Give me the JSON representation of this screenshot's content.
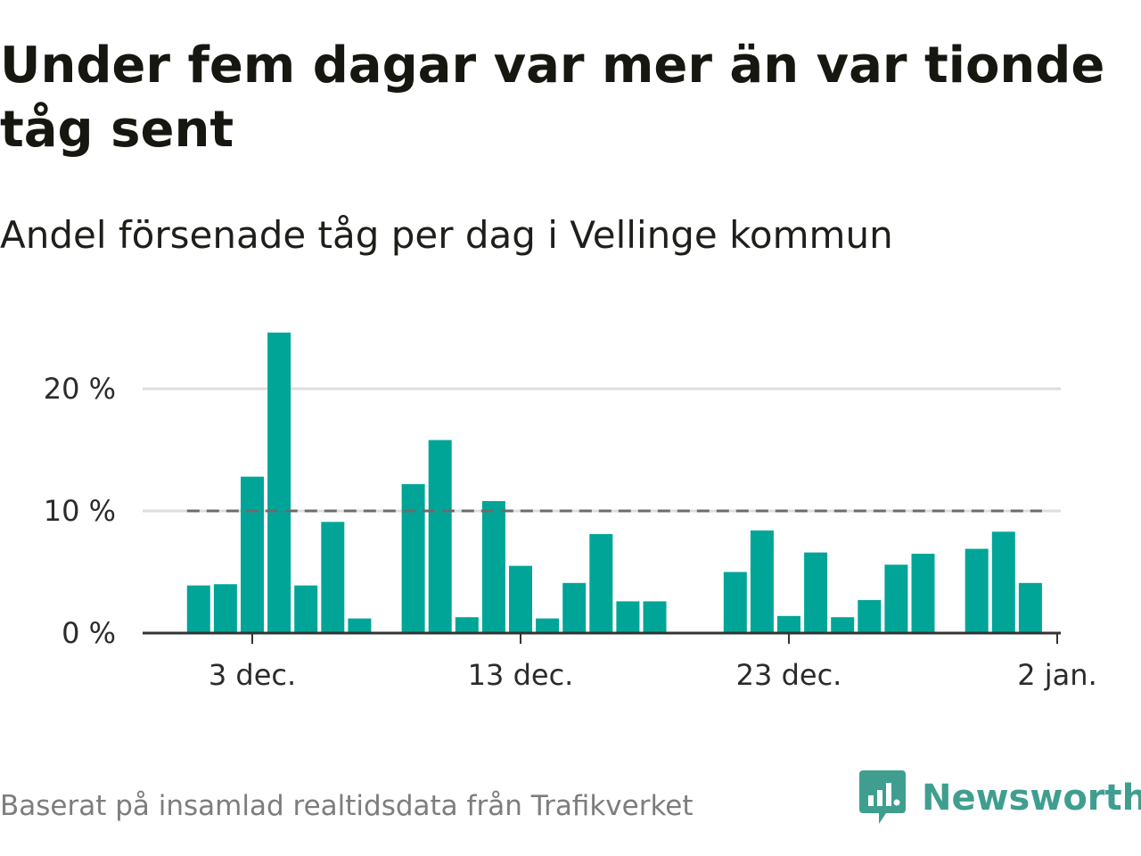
{
  "header": {
    "title": "Under fem dagar var mer än var tionde tåg sent",
    "subtitle": "Andel försenade tåg per dag i Vellinge kommun"
  },
  "footer": {
    "source": "Baserat på insamlad realtidsdata från Trafikverket",
    "brand": "Newsworthy",
    "brand_icon": "newsworthy-logo-icon"
  },
  "colors": {
    "bar": "#00a598",
    "reference_line": "#6b6b6b",
    "grid": "#dedede",
    "axis": "#333333",
    "brand": "#3f9e8f"
  },
  "chart_data": {
    "type": "bar",
    "title": "Under fem dagar var mer än var tionde tåg sent",
    "subtitle": "Andel försenade tåg per dag i Vellinge kommun",
    "xlabel": "",
    "ylabel": "",
    "x_unit": "day",
    "x": [
      "2023-12-01",
      "2023-12-02",
      "2023-12-03",
      "2023-12-04",
      "2023-12-05",
      "2023-12-06",
      "2023-12-07",
      "2023-12-09",
      "2023-12-10",
      "2023-12-11",
      "2023-12-12",
      "2023-12-13",
      "2023-12-14",
      "2023-12-15",
      "2023-12-16",
      "2023-12-17",
      "2023-12-18",
      "2023-12-21",
      "2023-12-22",
      "2023-12-23",
      "2023-12-24",
      "2023-12-25",
      "2023-12-26",
      "2023-12-27",
      "2023-12-28",
      "2023-12-30",
      "2023-12-31",
      "2024-01-01"
    ],
    "values": [
      3.9,
      4.0,
      12.8,
      24.6,
      3.9,
      9.1,
      1.2,
      12.2,
      15.8,
      1.3,
      10.8,
      5.5,
      1.2,
      4.1,
      8.1,
      2.6,
      2.6,
      5.0,
      8.4,
      1.4,
      6.6,
      1.3,
      2.7,
      5.6,
      6.5,
      6.9,
      8.3,
      4.1
    ],
    "reference_line": {
      "value": 10
    },
    "ylim": [
      0,
      27
    ],
    "yticks": [
      0,
      10,
      20
    ],
    "ytick_labels": [
      "0 %",
      "10 %",
      "20 %"
    ],
    "xlim": [
      "2023-11-29",
      "2024-01-02"
    ],
    "xticks": [
      "2023-12-03",
      "2023-12-13",
      "2023-12-23",
      "2024-01-02"
    ],
    "xtick_labels": [
      "3 dec.",
      "13 dec.",
      "23 dec.",
      "2 jan."
    ],
    "grid": true,
    "legend": "none"
  }
}
